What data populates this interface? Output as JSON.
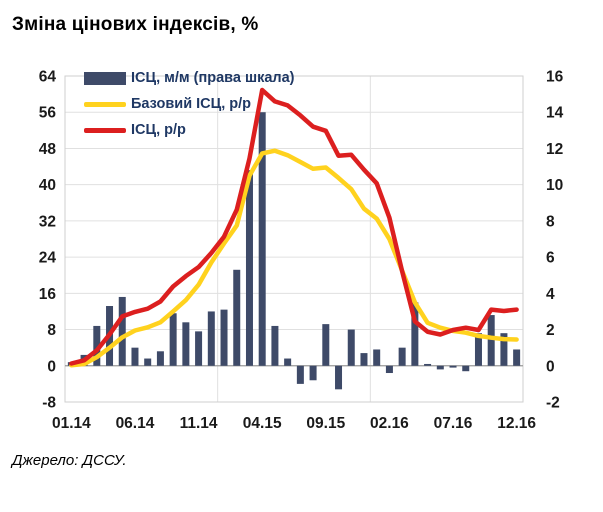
{
  "title": "Зміна цінових індексів, %",
  "source": "Джерело: ДССУ.",
  "colors": {
    "bar": "#3e4a68",
    "core_line": "#ffd21e",
    "cpi_line": "#dc1f1f",
    "gridline": "#e0e0e0",
    "plot_border": "#cfcfcf",
    "zero_line": "#9b9b9b",
    "tick_text": "#1a1a1a",
    "legend_text": "#1f3864"
  },
  "chart_data": {
    "type": "combo",
    "title": "Зміна цінових індексів, %",
    "categories": [
      "01.14",
      "02.14",
      "03.14",
      "04.14",
      "05.14",
      "06.14",
      "07.14",
      "08.14",
      "09.14",
      "10.14",
      "11.14",
      "12.14",
      "01.15",
      "02.15",
      "03.15",
      "04.15",
      "05.15",
      "06.15",
      "07.15",
      "08.15",
      "09.15",
      "10.15",
      "11.15",
      "12.15",
      "01.16",
      "02.16",
      "03.16",
      "04.16",
      "05.16",
      "06.16",
      "07.16",
      "08.16",
      "09.16",
      "10.16",
      "11.16",
      "12.16"
    ],
    "series": [
      {
        "name": "ІСЦ, м/м (права шкала)",
        "type": "bar",
        "axis": "right",
        "color": "#3e4a68",
        "values": [
          0.2,
          0.6,
          2.2,
          3.3,
          3.8,
          1.0,
          0.4,
          0.8,
          2.9,
          2.4,
          1.9,
          3.0,
          3.1,
          5.3,
          10.8,
          14.0,
          2.2,
          0.4,
          -1.0,
          -0.8,
          2.3,
          -1.3,
          2.0,
          0.7,
          0.9,
          -0.4,
          1.0,
          3.5,
          0.1,
          -0.2,
          -0.1,
          -0.3,
          1.8,
          2.8,
          1.8,
          0.9
        ]
      },
      {
        "name": "Базовий ІСЦ, р/р",
        "type": "line",
        "axis": "left",
        "color": "#ffd21e",
        "values": [
          0.1,
          0.4,
          1.9,
          4.0,
          6.3,
          7.8,
          8.5,
          9.6,
          12.0,
          14.5,
          17.9,
          22.8,
          27.0,
          31.0,
          42.0,
          46.9,
          47.5,
          46.5,
          45.0,
          43.5,
          43.8,
          41.5,
          39.0,
          34.7,
          32.5,
          28.0,
          21.0,
          14.0,
          9.5,
          8.4,
          7.7,
          7.3,
          6.6,
          6.2,
          5.9,
          5.8
        ]
      },
      {
        "name": "ІСЦ, р/р",
        "type": "line",
        "axis": "left",
        "color": "#dc1f1f",
        "values": [
          0.5,
          1.2,
          3.4,
          6.9,
          10.9,
          11.9,
          12.6,
          14.2,
          17.5,
          19.8,
          21.8,
          24.9,
          28.5,
          34.5,
          45.8,
          60.9,
          58.4,
          57.5,
          55.3,
          52.8,
          51.9,
          46.4,
          46.6,
          43.3,
          40.3,
          32.7,
          20.9,
          9.8,
          7.5,
          6.9,
          7.9,
          8.4,
          7.9,
          12.4,
          12.1,
          12.4
        ]
      }
    ],
    "axes": {
      "left": {
        "min": -8,
        "max": 64,
        "step": 8,
        "ticks": [
          64,
          56,
          48,
          40,
          32,
          24,
          16,
          8,
          0,
          -8
        ]
      },
      "right": {
        "min": -2,
        "max": 16,
        "step": 2,
        "ticks": [
          16,
          14,
          12,
          10,
          8,
          6,
          4,
          2,
          0,
          -2
        ]
      },
      "x_tick_labels": [
        "01.14",
        "06.14",
        "11.14",
        "04.15",
        "09.15",
        "02.16",
        "07.16",
        "12.16"
      ],
      "x_tick_indices": [
        0,
        5,
        10,
        15,
        20,
        25,
        30,
        35
      ]
    },
    "grid": {
      "horizontal": true,
      "vertical_month_boundaries": [
        12,
        24
      ]
    },
    "legend_position": "top-left-inside"
  }
}
